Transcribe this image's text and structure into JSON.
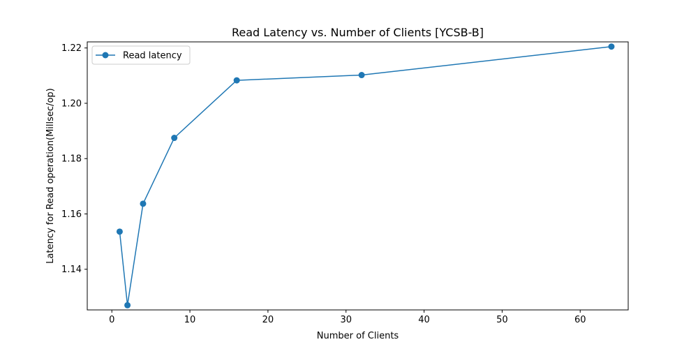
{
  "chart_data": {
    "type": "line",
    "title": "Read Latency vs. Number of Clients [YCSB-B]",
    "xlabel": "Number of Clients",
    "ylabel": "Latency for Read operation(Millsec/op)",
    "xlim": [
      -3.15,
      66.15
    ],
    "ylim": [
      1.1253,
      1.2222
    ],
    "xticks": [
      0,
      10,
      20,
      30,
      40,
      50,
      60
    ],
    "yticks": [
      1.14,
      1.16,
      1.18,
      1.2,
      1.22
    ],
    "ytick_labels": [
      "1.14",
      "1.16",
      "1.18",
      "1.20",
      "1.22"
    ],
    "grid": false,
    "legend_position": "top-left",
    "series": [
      {
        "name": "Read latency",
        "color": "#1f77b4",
        "marker": "circle",
        "x": [
          1,
          2,
          4,
          8,
          16,
          32,
          64
        ],
        "y": [
          1.1536,
          1.127,
          1.1637,
          1.1875,
          1.2083,
          1.2102,
          1.2205
        ]
      }
    ]
  }
}
